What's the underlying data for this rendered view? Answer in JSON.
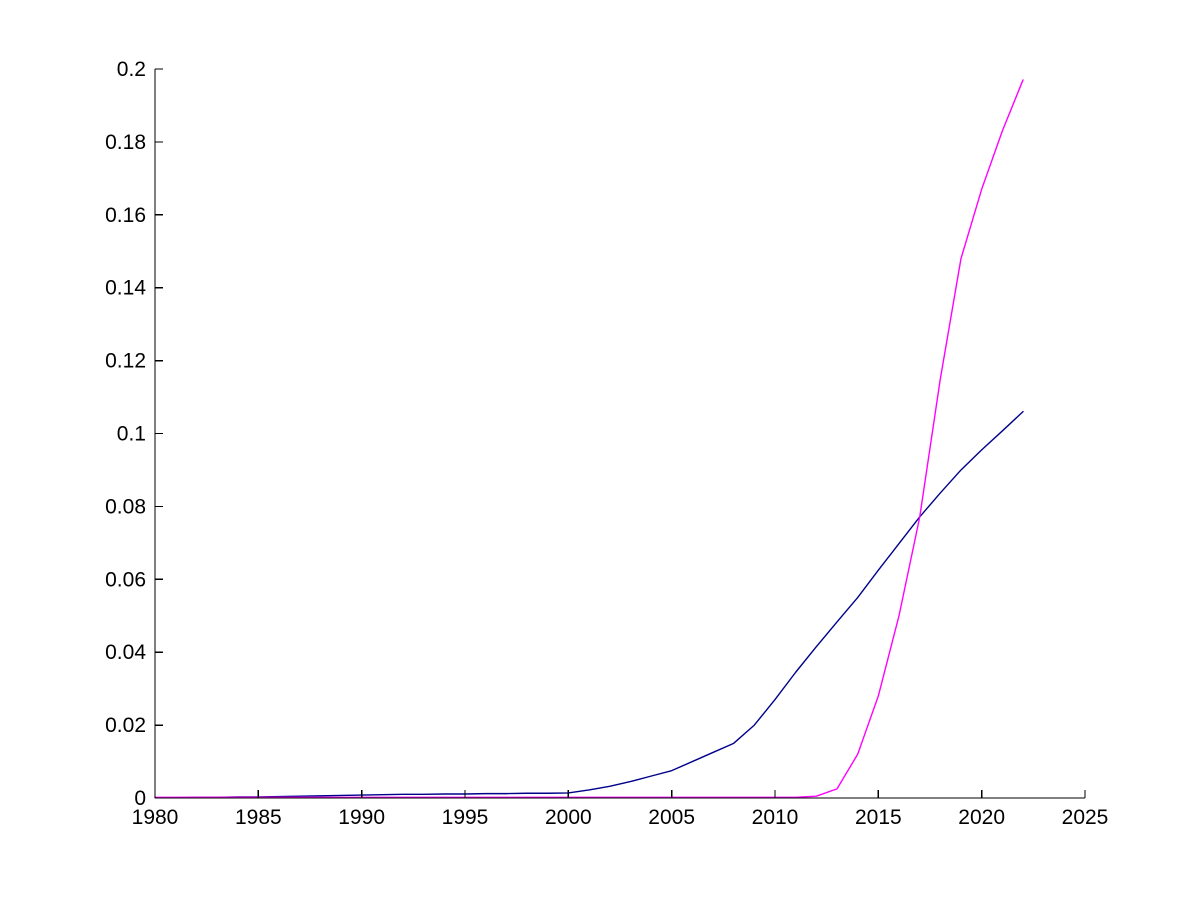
{
  "figure": {
    "background_color": "#ffffff",
    "axis_color": "#000000"
  },
  "chart_data": {
    "type": "line",
    "title": "",
    "xlabel": "",
    "ylabel": "",
    "grid": false,
    "legend": null,
    "xlim": [
      1980,
      2025
    ],
    "ylim": [
      0,
      0.2
    ],
    "xticks": [
      1980,
      1985,
      1990,
      1995,
      2000,
      2005,
      2010,
      2015,
      2020,
      2025
    ],
    "xtick_labels": [
      "1980",
      "1985",
      "1990",
      "1995",
      "2000",
      "2005",
      "2010",
      "2015",
      "2020",
      "2025"
    ],
    "yticks": [
      0,
      0.02,
      0.04,
      0.06,
      0.08,
      0.1,
      0.12,
      0.14,
      0.16,
      0.18,
      0.2
    ],
    "ytick_labels": [
      "0",
      "0.02",
      "0.04",
      "0.06",
      "0.08",
      "0.1",
      "0.12",
      "0.14",
      "0.16",
      "0.18",
      "0.2"
    ],
    "series": [
      {
        "name": "dark-blue-line",
        "color": "#00008B",
        "x": [
          1980,
          1981,
          1982,
          1983,
          1984,
          1985,
          1986,
          1987,
          1988,
          1989,
          1990,
          1991,
          1992,
          1993,
          1994,
          1995,
          1996,
          1997,
          1998,
          1999,
          2000,
          2001,
          2002,
          2003,
          2004,
          2005,
          2006,
          2007,
          2008,
          2009,
          2010,
          2011,
          2012,
          2013,
          2014,
          2015,
          2016,
          2017,
          2018,
          2019,
          2020,
          2021,
          2022
        ],
        "y": [
          0.0001,
          0.0001,
          0.0002,
          0.0002,
          0.0003,
          0.0003,
          0.0004,
          0.0005,
          0.0006,
          0.0007,
          0.0008,
          0.0009,
          0.001,
          0.001,
          0.0011,
          0.0011,
          0.0012,
          0.0012,
          0.0013,
          0.0013,
          0.0014,
          0.0022,
          0.0032,
          0.0045,
          0.006,
          0.0075,
          0.01,
          0.0125,
          0.015,
          0.02,
          0.027,
          0.0345,
          0.0415,
          0.0483,
          0.055,
          0.0625,
          0.0698,
          0.0771,
          0.0837,
          0.09,
          0.0955,
          0.1007,
          0.106
        ]
      },
      {
        "name": "magenta-line",
        "color": "#FF00FF",
        "x": [
          1980,
          1985,
          1990,
          1995,
          2000,
          2005,
          2010,
          2011,
          2012,
          2013,
          2014,
          2015,
          2016,
          2017,
          2018,
          2019,
          2020,
          2021,
          2022
        ],
        "y": [
          0.0002,
          0.0002,
          0.0002,
          0.0002,
          0.0002,
          0.0002,
          0.0002,
          0.0002,
          0.0005,
          0.0025,
          0.012,
          0.028,
          0.05,
          0.077,
          0.115,
          0.148,
          0.167,
          0.183,
          0.197
        ]
      }
    ]
  }
}
